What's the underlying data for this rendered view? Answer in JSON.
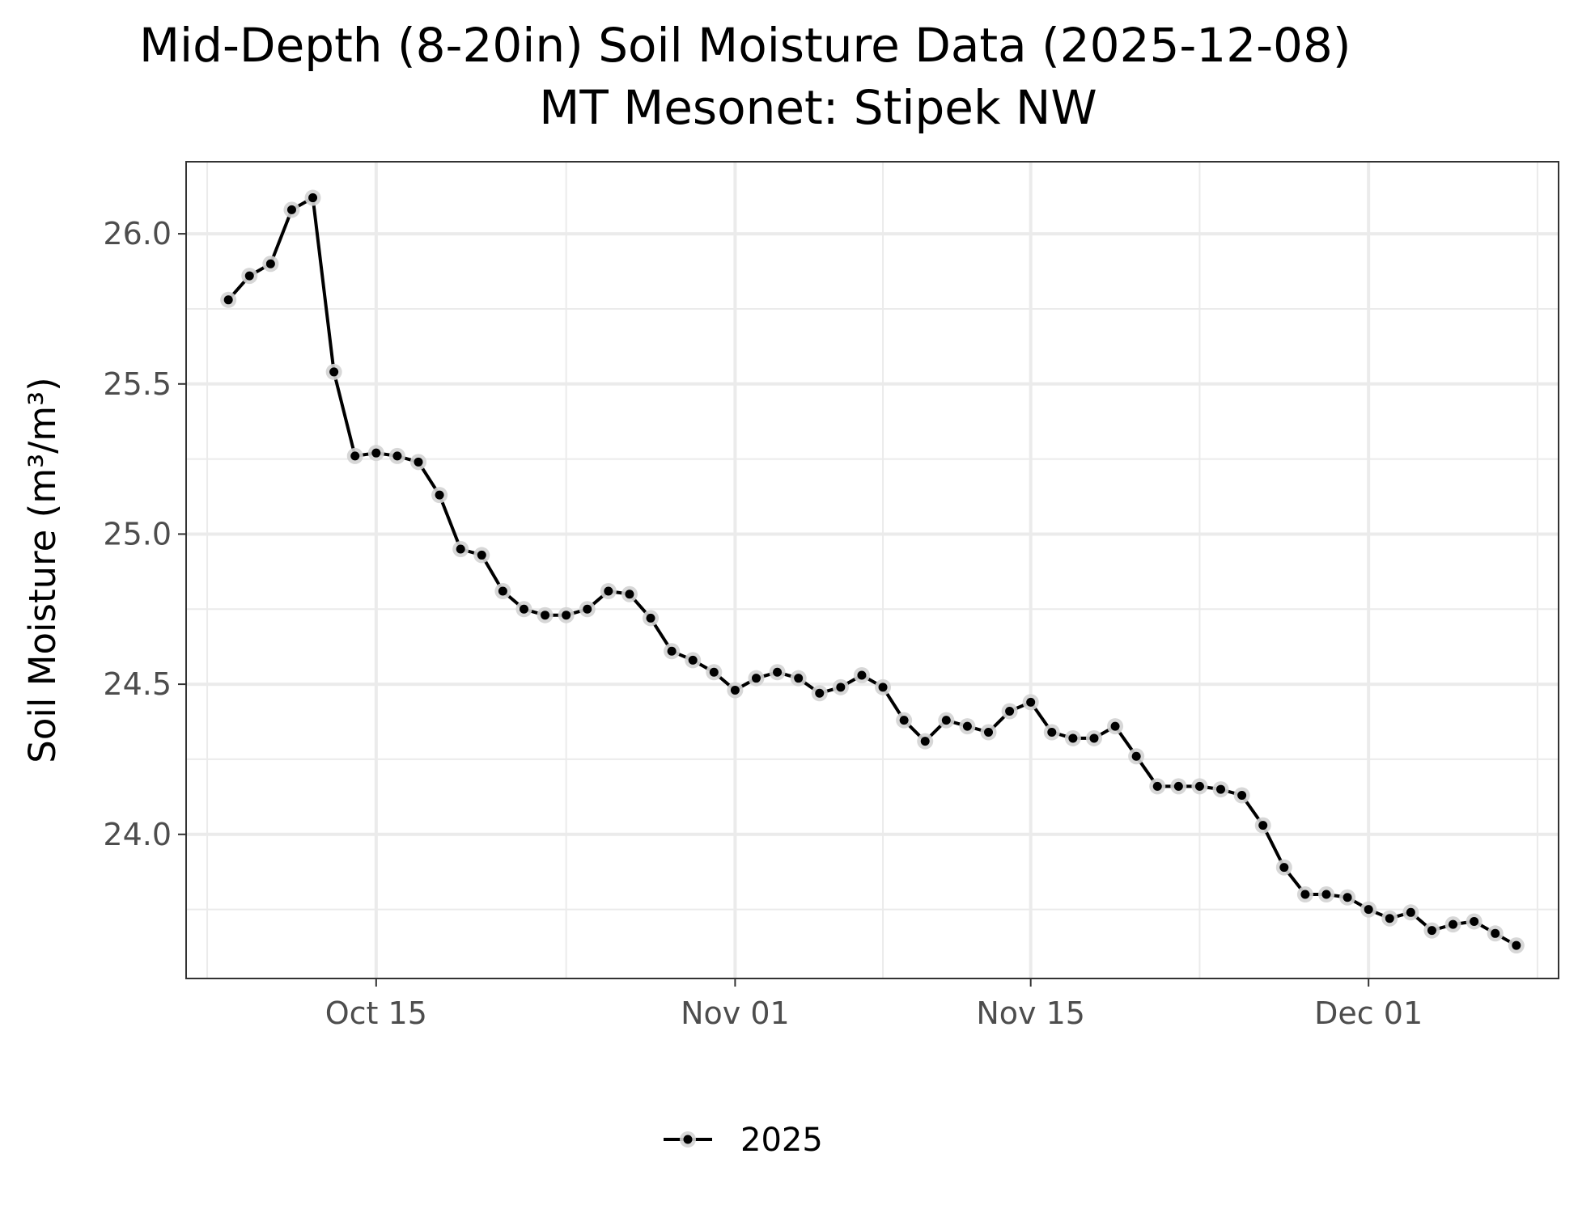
{
  "chart_data": {
    "type": "line",
    "title": "Mid-Depth (8-20in) Soil Moisture Data (2025-12-08)",
    "subtitle": "MT Mesonet: Stipek NW",
    "xlabel": "",
    "ylabel": "Soil Moisture (m³/m³)",
    "x_range": [
      "2025-10-06",
      "2025-12-10"
    ],
    "ylim": [
      23.52,
      26.24
    ],
    "x_ticks": [
      {
        "date": "2025-10-15",
        "label": "Oct 15"
      },
      {
        "date": "2025-11-01",
        "label": "Nov 01"
      },
      {
        "date": "2025-11-15",
        "label": "Nov 15"
      },
      {
        "date": "2025-12-01",
        "label": "Dec 01"
      }
    ],
    "x_minor_ticks": [
      "2025-10-07",
      "2025-10-24",
      "2025-11-08",
      "2025-11-23",
      "2025-12-09"
    ],
    "y_ticks": [
      {
        "value": 24.0,
        "label": "24.0"
      },
      {
        "value": 24.5,
        "label": "24.5"
      },
      {
        "value": 25.0,
        "label": "25.0"
      },
      {
        "value": 25.5,
        "label": "25.5"
      },
      {
        "value": 26.0,
        "label": "26.0"
      }
    ],
    "y_minor_ticks": [
      23.75,
      24.25,
      24.75,
      25.25,
      25.75
    ],
    "grid": true,
    "legend": {
      "position": "bottom"
    },
    "series": [
      {
        "name": "2025",
        "color": "#000000",
        "halo_color": "#d3d3d3",
        "x": [
          "2025-10-08",
          "2025-10-09",
          "2025-10-10",
          "2025-10-11",
          "2025-10-12",
          "2025-10-13",
          "2025-10-14",
          "2025-10-15",
          "2025-10-16",
          "2025-10-17",
          "2025-10-18",
          "2025-10-19",
          "2025-10-20",
          "2025-10-21",
          "2025-10-22",
          "2025-10-23",
          "2025-10-24",
          "2025-10-25",
          "2025-10-26",
          "2025-10-27",
          "2025-10-28",
          "2025-10-29",
          "2025-10-30",
          "2025-10-31",
          "2025-11-01",
          "2025-11-02",
          "2025-11-03",
          "2025-11-04",
          "2025-11-05",
          "2025-11-06",
          "2025-11-07",
          "2025-11-08",
          "2025-11-09",
          "2025-11-10",
          "2025-11-11",
          "2025-11-12",
          "2025-11-13",
          "2025-11-14",
          "2025-11-15",
          "2025-11-16",
          "2025-11-17",
          "2025-11-18",
          "2025-11-19",
          "2025-11-20",
          "2025-11-21",
          "2025-11-22",
          "2025-11-23",
          "2025-11-24",
          "2025-11-25",
          "2025-11-26",
          "2025-11-27",
          "2025-11-28",
          "2025-11-29",
          "2025-11-30",
          "2025-12-01",
          "2025-12-02",
          "2025-12-03",
          "2025-12-04",
          "2025-12-05",
          "2025-12-06",
          "2025-12-07",
          "2025-12-08"
        ],
        "values": [
          25.78,
          25.86,
          25.9,
          26.08,
          26.12,
          25.54,
          25.26,
          25.27,
          25.26,
          25.24,
          25.13,
          24.95,
          24.93,
          24.81,
          24.75,
          24.73,
          24.73,
          24.75,
          24.81,
          24.8,
          24.72,
          24.61,
          24.58,
          24.54,
          24.48,
          24.52,
          24.54,
          24.52,
          24.47,
          24.49,
          24.53,
          24.49,
          24.38,
          24.31,
          24.38,
          24.36,
          24.34,
          24.41,
          24.44,
          24.34,
          24.32,
          24.32,
          24.36,
          24.26,
          24.16,
          24.16,
          24.16,
          24.15,
          24.13,
          24.03,
          23.89,
          23.8,
          23.8,
          23.79,
          23.75,
          23.72,
          23.74,
          23.68,
          23.7,
          23.71,
          23.67,
          23.63
        ]
      }
    ]
  }
}
